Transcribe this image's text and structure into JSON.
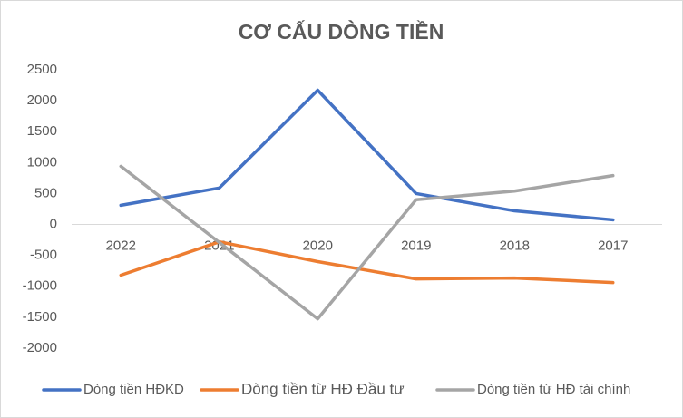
{
  "chart_data": {
    "type": "line",
    "title": "CƠ CẤU DÒNG TIỀN",
    "categories": [
      "2022",
      "2021",
      "2020",
      "2019",
      "2018",
      "2017"
    ],
    "series": [
      {
        "name": "Dòng tiền HĐKD",
        "color": "#4472c4",
        "values": [
          310,
          590,
          2170,
          500,
          220,
          75
        ]
      },
      {
        "name": "Dòng tiền từ HĐ Đầu tư",
        "color": "#ed7d31",
        "values": [
          -820,
          -280,
          -600,
          -880,
          -865,
          -940
        ]
      },
      {
        "name": "Dòng tiền từ HĐ tài chính",
        "color": "#a5a5a5",
        "values": [
          940,
          -290,
          -1525,
          400,
          540,
          790
        ]
      }
    ],
    "ylim": [
      -2000,
      2500
    ],
    "yticks": [
      -2000,
      -1500,
      -1000,
      -500,
      0,
      500,
      1000,
      1500,
      2000,
      2500
    ],
    "grid": false,
    "legend": "bottom"
  }
}
